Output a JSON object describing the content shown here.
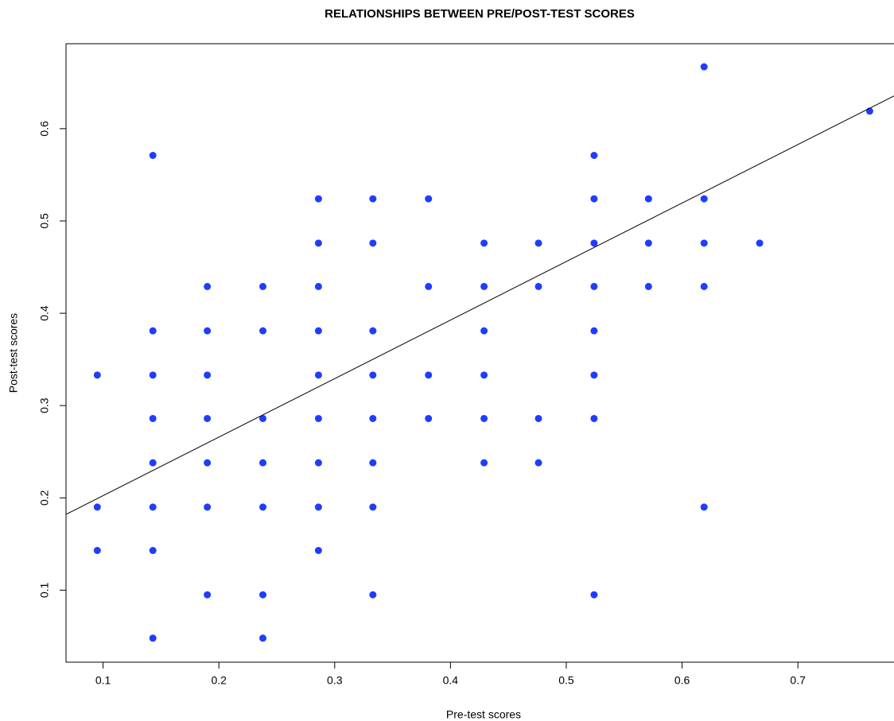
{
  "chart_data": {
    "type": "scatter",
    "title": "RELATIONSHIPS BETWEEN PRE/POST-TEST SCORES",
    "x_label": "Pre-test scores",
    "y_label": "Post-test scores",
    "x": [
      0.095,
      0.095,
      0.095,
      0.143,
      0.143,
      0.143,
      0.143,
      0.143,
      0.143,
      0.143,
      0.143,
      0.19,
      0.19,
      0.19,
      0.19,
      0.19,
      0.19,
      0.19,
      0.238,
      0.238,
      0.238,
      0.238,
      0.238,
      0.238,
      0.238,
      0.286,
      0.286,
      0.286,
      0.286,
      0.286,
      0.286,
      0.286,
      0.286,
      0.286,
      0.333,
      0.333,
      0.333,
      0.333,
      0.333,
      0.333,
      0.333,
      0.333,
      0.381,
      0.381,
      0.381,
      0.381,
      0.429,
      0.429,
      0.429,
      0.429,
      0.429,
      0.429,
      0.476,
      0.476,
      0.476,
      0.476,
      0.524,
      0.524,
      0.524,
      0.524,
      0.524,
      0.524,
      0.524,
      0.524,
      0.571,
      0.571,
      0.571,
      0.619,
      0.619,
      0.619,
      0.619,
      0.619,
      0.667,
      0.762
    ],
    "y": [
      0.333,
      0.19,
      0.143,
      0.571,
      0.381,
      0.333,
      0.286,
      0.238,
      0.19,
      0.143,
      0.048,
      0.429,
      0.381,
      0.333,
      0.286,
      0.238,
      0.19,
      0.095,
      0.429,
      0.381,
      0.286,
      0.238,
      0.19,
      0.095,
      0.048,
      0.524,
      0.476,
      0.429,
      0.381,
      0.333,
      0.286,
      0.238,
      0.19,
      0.143,
      0.524,
      0.476,
      0.381,
      0.333,
      0.286,
      0.238,
      0.19,
      0.095,
      0.524,
      0.429,
      0.333,
      0.286,
      0.476,
      0.429,
      0.381,
      0.333,
      0.286,
      0.238,
      0.476,
      0.429,
      0.286,
      0.238,
      0.571,
      0.524,
      0.476,
      0.429,
      0.381,
      0.333,
      0.286,
      0.095,
      0.524,
      0.476,
      0.429,
      0.667,
      0.524,
      0.476,
      0.429,
      0.19,
      0.476,
      0.619
    ],
    "color": "#1f3dff",
    "fit": {
      "intercept": 0.139,
      "slope": 0.634
    },
    "xlim": [
      0.068,
      0.783
    ],
    "ylim": [
      0.022,
      0.692
    ],
    "xticks": [
      0.1,
      0.2,
      0.3,
      0.4,
      0.5,
      0.6,
      0.7
    ],
    "yticks": [
      0.1,
      0.2,
      0.3,
      0.4,
      0.5,
      0.6
    ]
  }
}
